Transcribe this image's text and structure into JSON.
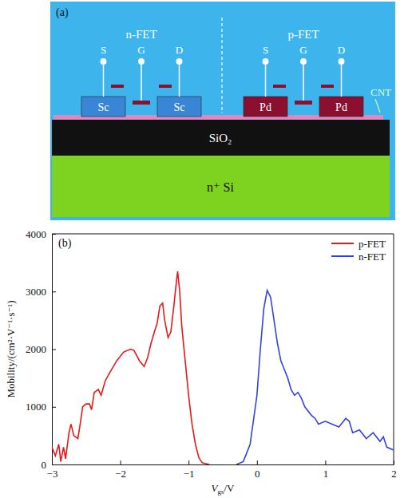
{
  "diagram": {
    "label": "(a)",
    "devices": [
      {
        "title": "n-FET",
        "contacts": [
          "Sc",
          "Sc"
        ],
        "terminals": [
          "S",
          "G",
          "D"
        ]
      },
      {
        "title": "p-FET",
        "contacts": [
          "Pd",
          "Pd"
        ],
        "terminals": [
          "S",
          "G",
          "D"
        ]
      }
    ],
    "oxide": "SiO₂",
    "substrate": "n⁺ Si",
    "channel": "CNT"
  },
  "chart_data": {
    "type": "line",
    "panel_label": "(b)",
    "x_label": "Vgs/V",
    "y_label": "Mobility/(cm²·V⁻¹·s⁻¹)",
    "xlim": [
      -3,
      2
    ],
    "xticks": [
      {
        "value": -3,
        "label": "−3"
      },
      {
        "value": -2,
        "label": "−2"
      },
      {
        "value": -1,
        "label": "−1"
      },
      0,
      1,
      2
    ],
    "ylim": [
      0,
      4000
    ],
    "yticks": [
      0,
      1000,
      2000,
      3000,
      4000
    ],
    "legend": "upper right",
    "series": [
      {
        "name": "p-FET",
        "color": "#e41a1c",
        "line_style": "solid",
        "x": [
          -3.0,
          -2.95,
          -2.9,
          -2.87,
          -2.83,
          -2.8,
          -2.75,
          -2.72,
          -2.68,
          -2.62,
          -2.58,
          -2.55,
          -2.5,
          -2.45,
          -2.42,
          -2.38,
          -2.32,
          -2.28,
          -2.22,
          -2.15,
          -2.05,
          -1.95,
          -1.85,
          -1.8,
          -1.72,
          -1.65,
          -1.6,
          -1.55,
          -1.5,
          -1.46,
          -1.42,
          -1.38,
          -1.35,
          -1.3,
          -1.26,
          -1.22,
          -1.18,
          -1.16,
          -1.13,
          -1.1,
          -1.05,
          -1.0,
          -0.95,
          -0.9,
          -0.85,
          -0.8,
          -0.7
        ],
        "values": [
          300,
          150,
          350,
          50,
          300,
          100,
          550,
          700,
          500,
          450,
          750,
          1000,
          1050,
          1050,
          950,
          1250,
          1300,
          1200,
          1450,
          1600,
          1800,
          1950,
          2000,
          1980,
          1800,
          1700,
          1850,
          2100,
          2300,
          2450,
          2750,
          2800,
          2500,
          2200,
          2300,
          2700,
          3150,
          3350,
          3000,
          2400,
          1800,
          1200,
          700,
          350,
          120,
          30,
          0
        ]
      },
      {
        "name": "n-FET",
        "color": "#3344dd",
        "line_style": "solid",
        "x": [
          -0.3,
          -0.2,
          -0.1,
          0.0,
          0.05,
          0.1,
          0.15,
          0.2,
          0.25,
          0.3,
          0.35,
          0.4,
          0.45,
          0.5,
          0.55,
          0.6,
          0.65,
          0.7,
          0.8,
          0.85,
          0.9,
          1.0,
          1.1,
          1.2,
          1.3,
          1.35,
          1.4,
          1.5,
          1.6,
          1.7,
          1.8,
          1.85,
          1.9,
          2.0
        ],
        "values": [
          0,
          50,
          350,
          1200,
          2000,
          2700,
          3020,
          2900,
          2500,
          2100,
          1800,
          1650,
          1500,
          1300,
          1200,
          1250,
          1150,
          1000,
          850,
          800,
          700,
          750,
          700,
          650,
          800,
          750,
          550,
          600,
          450,
          550,
          400,
          480,
          300,
          250
        ]
      }
    ]
  }
}
